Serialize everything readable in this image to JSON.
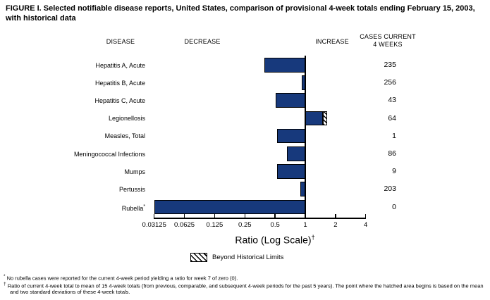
{
  "title": "FIGURE I. Selected notifiable disease reports, United States, comparison of provisional 4-week totals ending February 15, 2003, with historical data",
  "column_headers": {
    "disease": "DISEASE",
    "decrease": "DECREASE",
    "increase": "INCREASE",
    "cases_line1": "CASES CURRENT",
    "cases_line2": "4 WEEKS"
  },
  "chart_data": {
    "type": "bar",
    "orientation": "horizontal",
    "x_scale": "log2",
    "xlabel": "Ratio (Log Scale)",
    "xlabel_superscript": "†",
    "x_ticks": [
      "0.03125",
      "0.0625",
      "0.125",
      "0.25",
      "0.5",
      "1",
      "2",
      "4"
    ],
    "x_range": [
      0.03125,
      4
    ],
    "baseline_ratio": 1,
    "rows": [
      {
        "disease": "Hepatitis A, Acute",
        "ratio": 0.39,
        "cases": "235"
      },
      {
        "disease": "Hepatitis B, Acute",
        "ratio": 0.92,
        "cases": "256"
      },
      {
        "disease": "Hepatitis C, Acute",
        "ratio": 0.51,
        "cases": "43"
      },
      {
        "disease": "Legionellosis",
        "ratio": 1.65,
        "cases": "64",
        "beyond_historical_limits": true,
        "hatch_start": 1.5
      },
      {
        "disease": "Measles, Total",
        "ratio": 0.52,
        "cases": "1"
      },
      {
        "disease": "Meningococcal Infections",
        "ratio": 0.66,
        "cases": "86"
      },
      {
        "disease": "Mumps",
        "ratio": 0.52,
        "cases": "9"
      },
      {
        "disease": "Pertussis",
        "ratio": 0.9,
        "cases": "203"
      },
      {
        "disease": "Rubella",
        "label_superscript": "*",
        "ratio": 0,
        "cases": "0"
      }
    ],
    "legend": {
      "label": "Beyond Historical Limits",
      "swatch": "diagonal-hatch"
    }
  },
  "footnotes": [
    {
      "marker": "*",
      "text": "No rubella cases were reported for the current 4-week period yielding a ratio for week 7 of zero (0)."
    },
    {
      "marker": "†",
      "text": "Ratio of current 4-week total to mean of 15 4-week totals (from previous, comparable, and subsequent 4-week periods for the past 5 years). The point where the hatched area begins is based on the mean and two standard deviations of these 4-week totals."
    }
  ],
  "colors": {
    "bar": "#17397C",
    "bar_border": "#000000",
    "text": "#000000",
    "background": "#FFFFFF"
  }
}
